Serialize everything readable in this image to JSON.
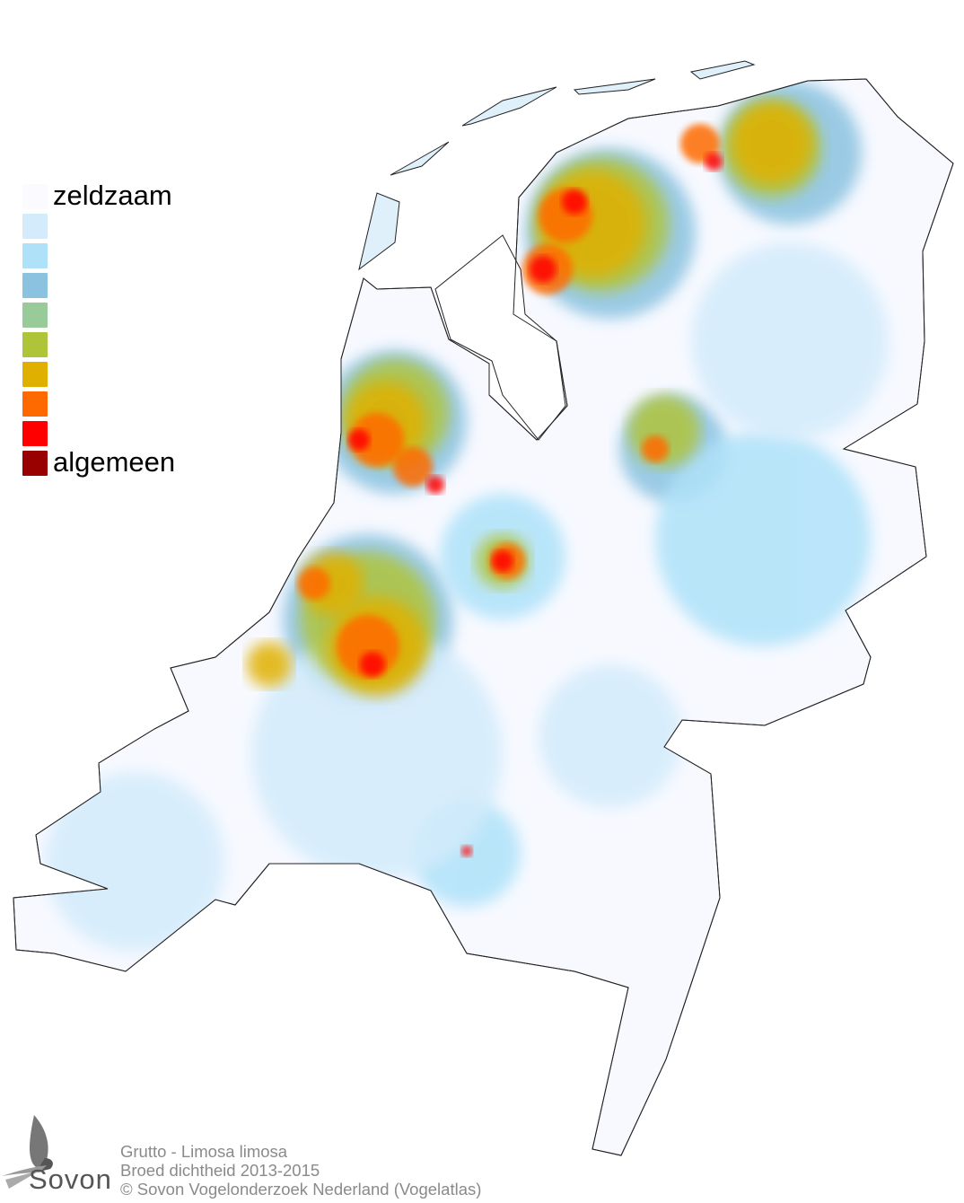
{
  "legend": {
    "top_label": "zeldzaam",
    "bottom_label": "algemeen",
    "colors": [
      "#fbfbff",
      "#d3ebfb",
      "#afe2f9",
      "#8ac2e0",
      "#98cb98",
      "#b0c43a",
      "#e0b000",
      "#ff6a00",
      "#ff0000",
      "#990000"
    ]
  },
  "credits": {
    "species": "Grutto - Limosa limosa",
    "subtitle": "Broed dichtheid 2013-2015",
    "copyright": "© Sovon Vogelonderzoek Nederland (Vogelatlas)"
  },
  "logo": {
    "text": "Sovon"
  }
}
